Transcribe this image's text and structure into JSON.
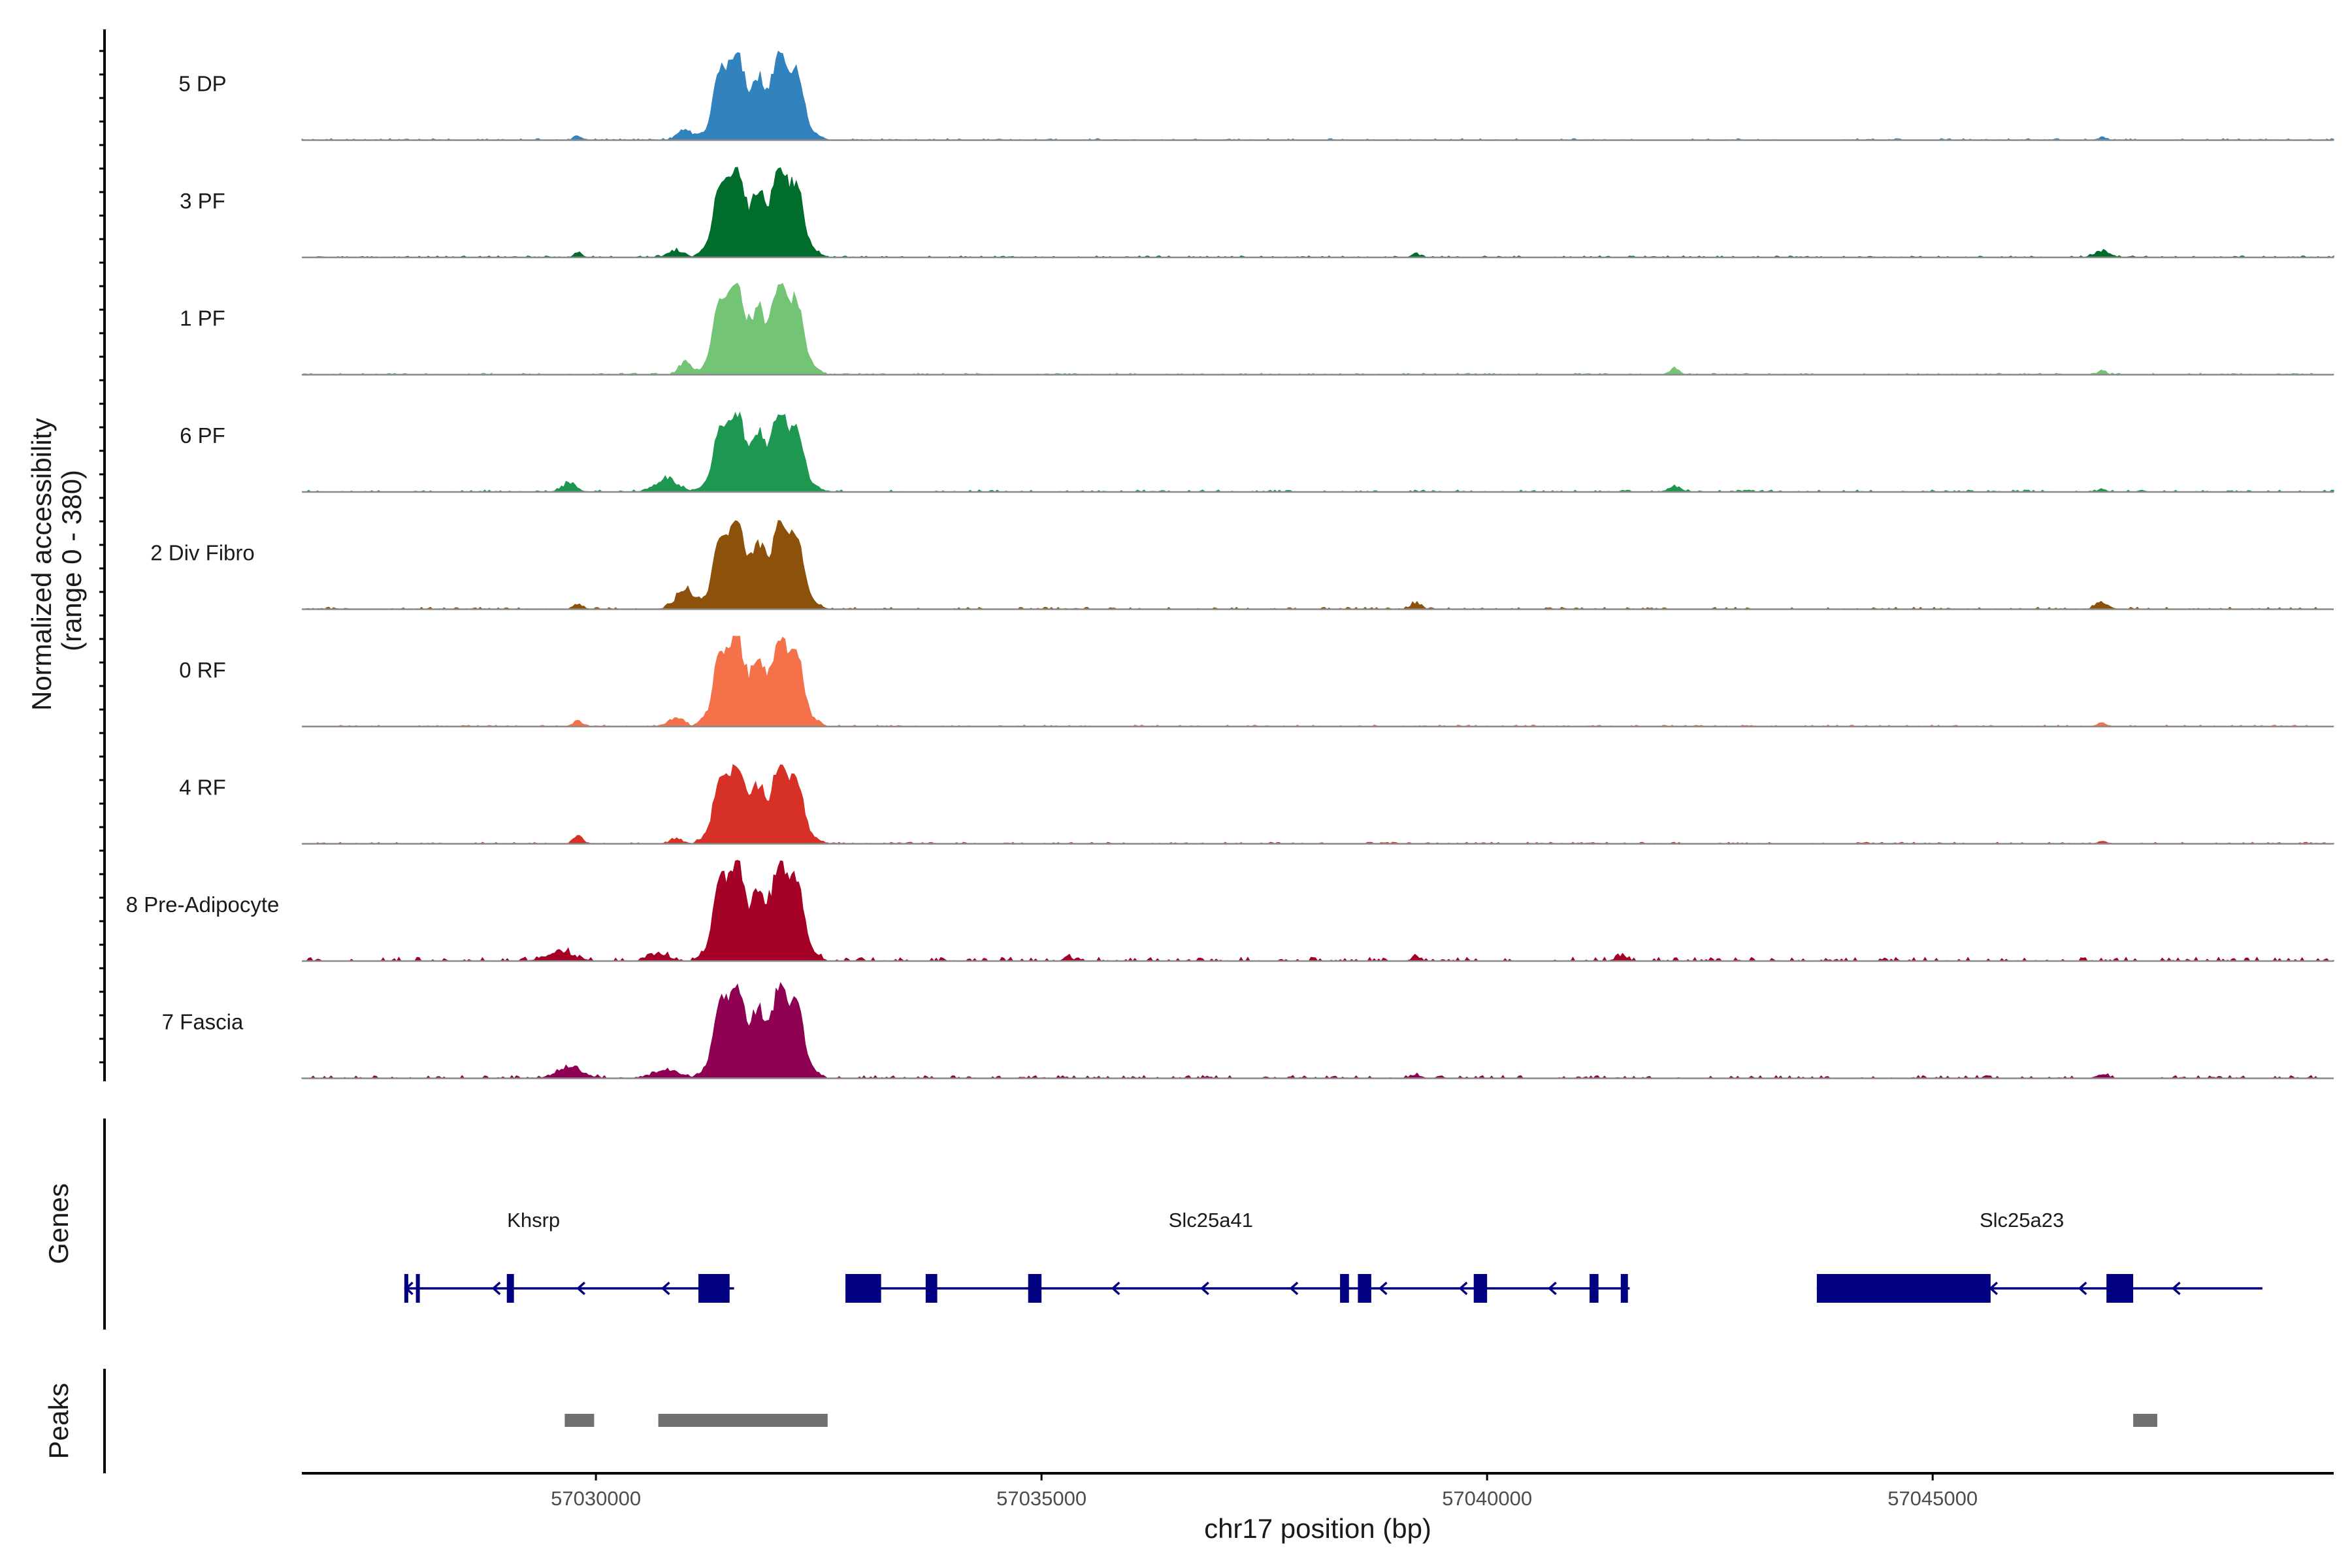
{
  "chart_data": {
    "type": "area",
    "title": "",
    "ylabel_line1": "Normalized accessibility",
    "ylabel_line2": "(range 0 - 380)",
    "xlabel": "chr17 position (bp)",
    "ylim": [
      0,
      380
    ],
    "xlim": [
      57026700,
      57049500
    ],
    "x_ticks": [
      57030000,
      57035000,
      57040000,
      57045000
    ],
    "x_tick_labels": [
      "57030000",
      "57035000",
      "57040000",
      "57045000"
    ],
    "tracks": [
      {
        "name": "5 DP",
        "color": "#3182BD",
        "peak": 330,
        "bg": 1.0,
        "seed": 11,
        "bumps": [
          [
            57029800,
            15,
            60
          ],
          [
            57031000,
            40,
            120
          ],
          [
            57046900,
            12,
            60
          ]
        ]
      },
      {
        "name": "3 PF",
        "color": "#006D2C",
        "peak": 340,
        "bg": 1.0,
        "seed": 23,
        "bumps": [
          [
            57029800,
            18,
            60
          ],
          [
            57030900,
            30,
            120
          ],
          [
            57039200,
            15,
            60
          ],
          [
            57046900,
            25,
            120
          ]
        ]
      },
      {
        "name": "1 PF",
        "color": "#74C476",
        "peak": 345,
        "bg": 1.0,
        "seed": 37,
        "bumps": [
          [
            57031000,
            55,
            90
          ],
          [
            57042100,
            22,
            80
          ],
          [
            57046900,
            18,
            60
          ]
        ]
      },
      {
        "name": "6 PF",
        "color": "#1E9850",
        "peak": 300,
        "bg": 1.3,
        "seed": 41,
        "bumps": [
          [
            57029700,
            35,
            110
          ],
          [
            57030800,
            50,
            180
          ],
          [
            57042100,
            25,
            90
          ],
          [
            57046900,
            12,
            60
          ]
        ]
      },
      {
        "name": "2 Div Fibro",
        "color": "#8C510A",
        "peak": 335,
        "bg": 1.3,
        "seed": 53,
        "bumps": [
          [
            57029800,
            20,
            70
          ],
          [
            57031000,
            70,
            150
          ],
          [
            57039200,
            25,
            80
          ],
          [
            57046900,
            25,
            100
          ]
        ]
      },
      {
        "name": "0 RF",
        "color": "#F4714A",
        "peak": 340,
        "bg": 1.0,
        "seed": 61,
        "bumps": [
          [
            57029800,
            25,
            60
          ],
          [
            57030900,
            30,
            120
          ],
          [
            57046900,
            15,
            60
          ]
        ]
      },
      {
        "name": "4 RF",
        "color": "#D73027",
        "peak": 300,
        "bg": 1.0,
        "seed": 73,
        "bumps": [
          [
            57029800,
            35,
            70
          ],
          [
            57030900,
            18,
            100
          ],
          [
            57046900,
            12,
            60
          ]
        ]
      },
      {
        "name": "8 Pre-Adipocyte",
        "color": "#A50026",
        "peak": 380,
        "bg": 2.4,
        "seed": 83,
        "bumps": [
          [
            57029600,
            40,
            200
          ],
          [
            57030700,
            30,
            150
          ],
          [
            57035300,
            20,
            60
          ],
          [
            57039200,
            20,
            60
          ],
          [
            57041500,
            20,
            80
          ]
        ]
      },
      {
        "name": "7 Fascia",
        "color": "#8E0152",
        "peak": 355,
        "bg": 1.8,
        "seed": 97,
        "bumps": [
          [
            57029700,
            45,
            200
          ],
          [
            57030800,
            35,
            200
          ],
          [
            57039200,
            12,
            80
          ],
          [
            57046900,
            15,
            80
          ]
        ]
      }
    ],
    "gene_track_label": "Genes",
    "peak_track_label": "Peaks",
    "genes": [
      {
        "name": "Khsrp",
        "start": 57027850,
        "end": 57031550,
        "strand": "-",
        "label_x": 57029300,
        "exons": [
          [
            57027850,
            57027880
          ],
          [
            57027980,
            57028010
          ],
          [
            57029000,
            57029080
          ],
          [
            57031150,
            57031500
          ]
        ]
      },
      {
        "name": "Slc25a41",
        "start": 57032800,
        "end": 57041600,
        "strand": "-",
        "label_x": 57036900,
        "exons": [
          [
            57032800,
            57033200
          ],
          [
            57033700,
            57033830
          ],
          [
            57034850,
            57035000
          ],
          [
            57038350,
            57038450
          ],
          [
            57038550,
            57038700
          ],
          [
            57039850,
            57040000
          ],
          [
            57041150,
            57041250
          ],
          [
            57041500,
            57041580
          ]
        ]
      },
      {
        "name": "Slc25a23",
        "start": 57043700,
        "end": 57048700,
        "strand": "-",
        "label_x": 57046000,
        "exons": [
          [
            57043700,
            57045650
          ],
          [
            57046950,
            57047250
          ]
        ]
      }
    ],
    "gene_arrows": [
      57028850,
      57029800,
      57030750,
      57035800,
      57036800,
      57037800,
      57038800,
      57039700,
      57040700,
      57045650,
      57046650,
      57047700
    ],
    "peaks": [
      [
        57029650,
        57029980
      ],
      [
        57030700,
        57032600
      ],
      [
        57047250,
        57047520
      ]
    ]
  }
}
